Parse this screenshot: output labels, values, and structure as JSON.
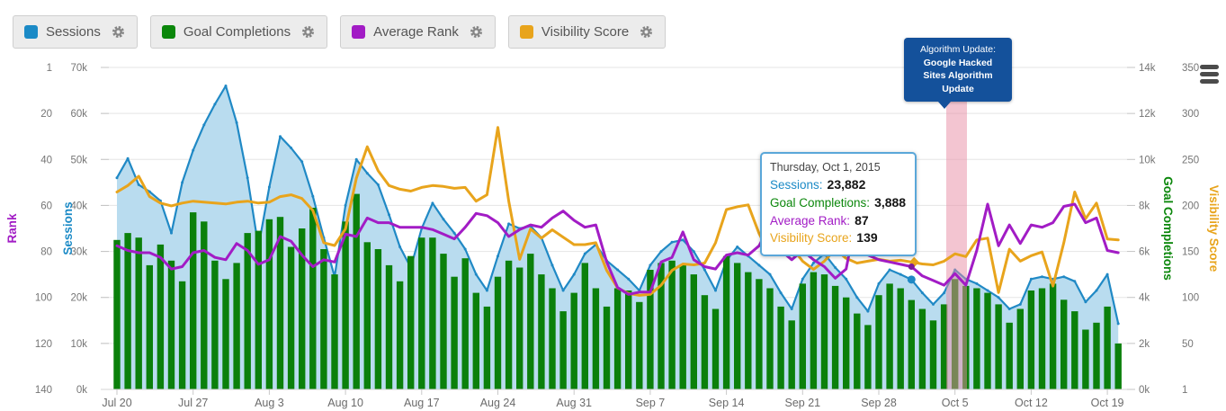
{
  "header": {
    "menu_icon": "hamburger-menu"
  },
  "legend": {
    "items": [
      {
        "label": "Sessions",
        "color": "#1b8ac6",
        "gear_icon": "gear-icon"
      },
      {
        "label": "Goal Completions",
        "color": "#0b870b",
        "gear_icon": "gear-icon"
      },
      {
        "label": "Average Rank",
        "color": "#a21cc5",
        "gear_icon": "gear-icon"
      },
      {
        "label": "Visibility Score",
        "color": "#e8a41c",
        "gear_icon": "gear-icon"
      }
    ]
  },
  "annotation": {
    "line1": "Algorithm Update:",
    "line2": "Google Hacked Sites Algorithm Update",
    "bg_color": "#14519b",
    "band_color": "#e88ba4",
    "band_from_day": 76.2,
    "band_to_day": 78.1
  },
  "tooltip": {
    "date": "Thursday, Oct 1, 2015",
    "rows": [
      {
        "label": "Sessions:",
        "value": "23,882",
        "color": "#1b8ac6"
      },
      {
        "label": "Goal Completions:",
        "value": "3,888",
        "color": "#0b870b"
      },
      {
        "label": "Average Rank:",
        "value": "87",
        "color": "#a21cc5"
      },
      {
        "label": "Visibility Score:",
        "value": "139",
        "color": "#e8a41c"
      }
    ],
    "highlight_day_index": 73
  },
  "chart_data": {
    "type": "mixed",
    "title": "",
    "grid": true,
    "x": {
      "start_date": "Jul 20, 2015",
      "end_date": "Oct 20, 2015",
      "tick_labels": [
        "Jul 20",
        "Jul 27",
        "Aug 3",
        "Aug 10",
        "Aug 17",
        "Aug 24",
        "Aug 31",
        "Sep 7",
        "Sep 14",
        "Sep 21",
        "Sep 28",
        "Oct 5",
        "Oct 12",
        "Oct 19"
      ],
      "days": 93
    },
    "axes": {
      "rank": {
        "title": "Rank",
        "side": "left-outer",
        "color": "#a21cc5",
        "ticks": [
          "1",
          "20",
          "40",
          "60",
          "80",
          "100",
          "120",
          "140"
        ],
        "range": [
          1,
          140
        ],
        "inverted": true
      },
      "sessions": {
        "title": "Sessions",
        "side": "left-inner",
        "color": "#1b8ac6",
        "ticks": [
          "70k",
          "60k",
          "50k",
          "40k",
          "30k",
          "20k",
          "10k",
          "0k"
        ],
        "range": [
          0,
          70000
        ]
      },
      "goal_completions": {
        "title": "Goal Completions",
        "side": "right-inner",
        "color": "#0b870b",
        "ticks": [
          "14k",
          "12k",
          "10k",
          "8k",
          "6k",
          "4k",
          "2k",
          "0k"
        ],
        "range": [
          0,
          14000
        ]
      },
      "visibility": {
        "title": "Visibility Score",
        "side": "right-outer",
        "color": "#e8a41c",
        "ticks": [
          "350",
          "300",
          "250",
          "200",
          "150",
          "100",
          "50",
          "1"
        ],
        "range": [
          1,
          350
        ]
      }
    },
    "series": [
      {
        "name": "Sessions",
        "type": "area",
        "axis": "sessions",
        "color": "#2089c5",
        "fill": "#b9dcef",
        "values": [
          46000,
          50200,
          44500,
          43000,
          41000,
          34000,
          45000,
          52000,
          57500,
          62000,
          66000,
          58000,
          46000,
          31000,
          44000,
          55000,
          52500,
          49500,
          42000,
          33000,
          24500,
          40000,
          50000,
          47000,
          44500,
          38000,
          31000,
          26500,
          35000,
          40500,
          37000,
          34000,
          30500,
          25000,
          21500,
          29000,
          36000,
          35000,
          35500,
          33000,
          27000,
          21500,
          25000,
          29500,
          31500,
          28000,
          26000,
          24000,
          21500,
          27000,
          30000,
          32000,
          32500,
          30000,
          26000,
          21500,
          28000,
          31000,
          29000,
          27000,
          25000,
          21000,
          17500,
          24000,
          27500,
          29500,
          26500,
          24000,
          20000,
          17000,
          23000,
          26000,
          25000,
          23882,
          21000,
          18500,
          21000,
          26000,
          24000,
          23000,
          21500,
          20000,
          17500,
          18500,
          24000,
          24500,
          24000,
          24500,
          23500,
          19000,
          21500,
          25000,
          14300
        ]
      },
      {
        "name": "Goal Completions",
        "type": "bar",
        "axis": "goal_completions",
        "color": "#0b800b",
        "values": [
          6500,
          6800,
          6600,
          5400,
          6300,
          5600,
          4700,
          7700,
          7300,
          5600,
          4800,
          5500,
          6800,
          6900,
          7400,
          7500,
          6200,
          7000,
          7900,
          6100,
          5000,
          7300,
          8500,
          6400,
          6100,
          5400,
          4700,
          5800,
          6600,
          6600,
          5900,
          4900,
          5700,
          4200,
          3600,
          4900,
          5600,
          5300,
          5900,
          5000,
          4400,
          3400,
          4200,
          5500,
          4400,
          3600,
          4400,
          4300,
          3800,
          5200,
          5500,
          5600,
          5400,
          5000,
          4100,
          3500,
          5800,
          5500,
          5100,
          4800,
          4400,
          3600,
          3000,
          4600,
          5100,
          5000,
          4500,
          4000,
          3300,
          2800,
          4100,
          4600,
          4400,
          3888,
          3500,
          3000,
          3700,
          4800,
          4500,
          4400,
          4200,
          3700,
          2900,
          3500,
          4300,
          4400,
          4600,
          3900,
          3400,
          2600,
          2900,
          3600,
          2000
        ]
      },
      {
        "name": "Average Rank",
        "type": "line",
        "axis": "rank",
        "color": "#a21cc5",
        "values": [
          78,
          80,
          81,
          81,
          83,
          88,
          87,
          81,
          80,
          83,
          84,
          77,
          80,
          86,
          84,
          74,
          76,
          82,
          87,
          84,
          85,
          73,
          74,
          66,
          68,
          68,
          70,
          70,
          70,
          71,
          73,
          75,
          70,
          64,
          65,
          68,
          74,
          71,
          69,
          70,
          66,
          63,
          67,
          70,
          69,
          85,
          96,
          99,
          98,
          98,
          85,
          83,
          72,
          84,
          87,
          88,
          82,
          81,
          82,
          78,
          69,
          80,
          84,
          80,
          84,
          87,
          92,
          88,
          64,
          82,
          84,
          85,
          86,
          87,
          91,
          93,
          95,
          90,
          95,
          80,
          60,
          78,
          69,
          77,
          69,
          70,
          68,
          61,
          60,
          68,
          66,
          80,
          81
        ]
      },
      {
        "name": "Visibility Score",
        "type": "line",
        "axis": "visibility",
        "color": "#e8a41c",
        "values": [
          215,
          222,
          232,
          210,
          203,
          200,
          203,
          205,
          204,
          203,
          202,
          204,
          205,
          203,
          204,
          210,
          212,
          208,
          195,
          160,
          157,
          175,
          230,
          264,
          238,
          222,
          218,
          216,
          220,
          222,
          221,
          219,
          220,
          205,
          212,
          285,
          205,
          142,
          175,
          165,
          174,
          166,
          158,
          158,
          160,
          130,
          111,
          105,
          103,
          104,
          114,
          130,
          137,
          136,
          138,
          160,
          196,
          199,
          201,
          170,
          147,
          174,
          155,
          140,
          131,
          140,
          153,
          143,
          138,
          140,
          142,
          140,
          141,
          139,
          137,
          136,
          140,
          148,
          145,
          163,
          165,
          106,
          153,
          140,
          146,
          150,
          113,
          160,
          215,
          186,
          203,
          164,
          163
        ]
      }
    ]
  }
}
